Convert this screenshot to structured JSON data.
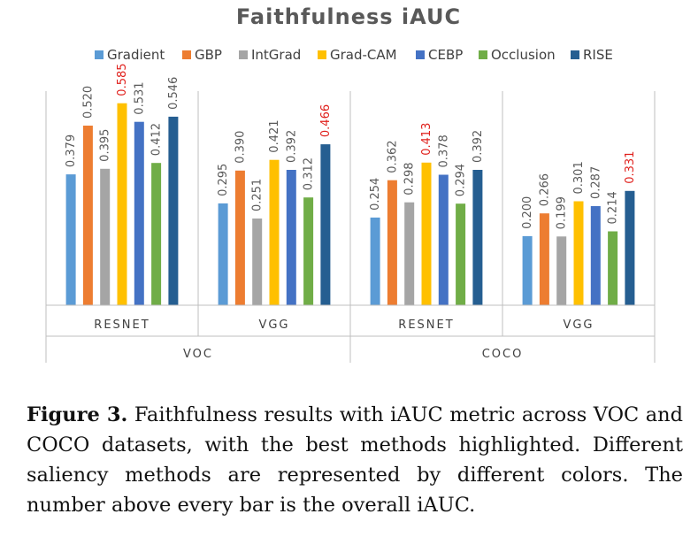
{
  "chart_data": {
    "type": "bar",
    "title": "Faithfulness iAUC",
    "legend_position": "top",
    "grid": false,
    "ylim": [
      0,
      0.62
    ],
    "series": [
      {
        "name": "Gradient",
        "color": "#5B9BD5",
        "values": [
          0.379,
          0.295,
          0.254,
          0.2
        ]
      },
      {
        "name": "GBP",
        "color": "#ED7D31",
        "values": [
          0.52,
          0.39,
          0.362,
          0.266
        ]
      },
      {
        "name": "IntGrad",
        "color": "#A5A5A5",
        "values": [
          0.395,
          0.251,
          0.298,
          0.199
        ]
      },
      {
        "name": "Grad-CAM",
        "color": "#FFC000",
        "values": [
          0.585,
          0.421,
          0.413,
          0.301
        ]
      },
      {
        "name": "CEBP",
        "color": "#4472C4",
        "values": [
          0.531,
          0.392,
          0.378,
          0.287
        ]
      },
      {
        "name": "Occlusion",
        "color": "#70AD47",
        "values": [
          0.412,
          0.312,
          0.294,
          0.214
        ]
      },
      {
        "name": "RISE",
        "color": "#255E91",
        "values": [
          0.546,
          0.466,
          0.392,
          0.331
        ]
      }
    ],
    "categories": [
      "RESNET",
      "VGG",
      "RESNET",
      "VGG"
    ],
    "groups": [
      {
        "label": "VOC"
      },
      {
        "label": "COCO"
      }
    ],
    "highlight_color": "#E0201C",
    "label_color": "#595959",
    "axis_color": "#BFBFBF"
  },
  "caption": {
    "label": "Figure 3.",
    "text": " Faithfulness results with iAUC metric across VOC and COCO datasets, with the best methods highlighted. Different saliency methods are represented by different colors. The number above every bar is the overall iAUC."
  }
}
